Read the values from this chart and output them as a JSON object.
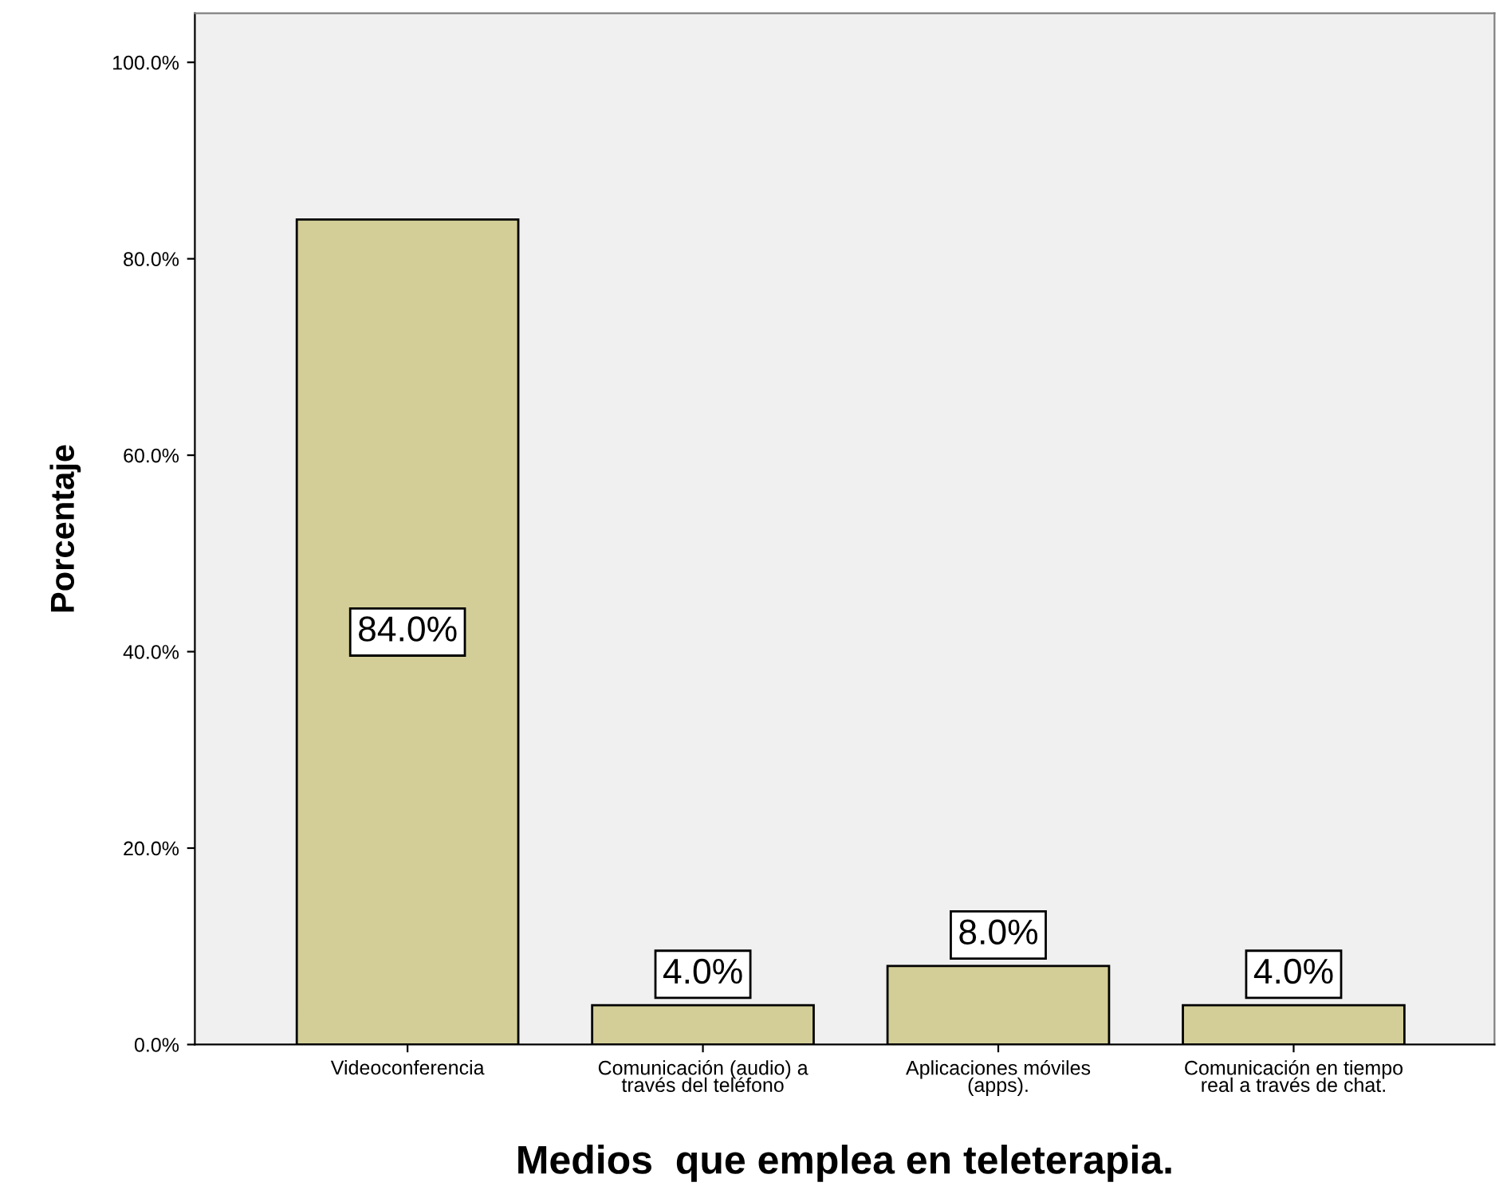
{
  "chart_data": {
    "type": "bar",
    "xlabel": "Medios  que emplea en teleterapia.",
    "ylabel": "Porcentaje",
    "categories": [
      "Videoconferencia",
      "Comunicación (audio) a\ntravés del teléfono",
      "Aplicaciones móviles\n(apps).",
      "Comunicación en tiempo\nreal a través de chat."
    ],
    "values": [
      84.0,
      4.0,
      8.0,
      4.0
    ],
    "value_labels": [
      "84.0%",
      "4.0%",
      "8.0%",
      "4.0%"
    ],
    "color": "#d3ce97",
    "ylim": [
      0,
      105
    ],
    "yticks": [
      {
        "value": 0,
        "label": "0.0%"
      },
      {
        "value": 20,
        "label": "20.0%"
      },
      {
        "value": 40,
        "label": "40.0%"
      },
      {
        "value": 60,
        "label": "60.0%"
      },
      {
        "value": 80,
        "label": "80.0%"
      },
      {
        "value": 100,
        "label": "100.0%"
      }
    ],
    "grid": false,
    "legend": false
  }
}
